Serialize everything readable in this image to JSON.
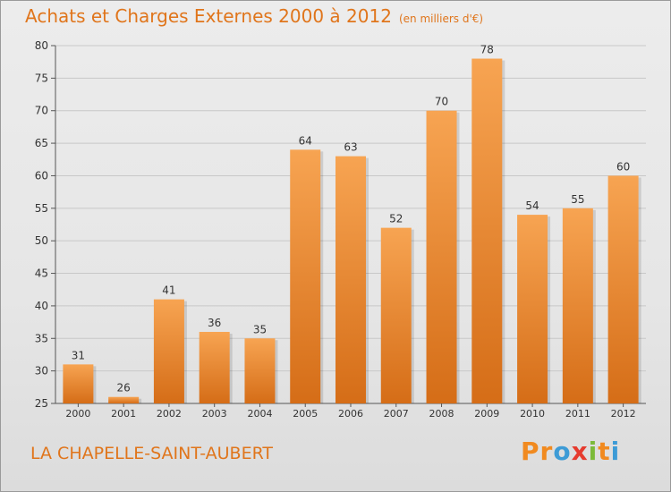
{
  "header": {
    "title": "Achats et Charges Externes 2000 à 2012",
    "unit": "(en milliers d'€)"
  },
  "footer": {
    "commune": "LA CHAPELLE-SAINT-AUBERT",
    "logo": "Proxiti"
  },
  "colors": {
    "bar_top": "#f7a452",
    "bar_bottom": "#d56d17",
    "title": "#e0751b",
    "logo": [
      "#f18a1f",
      "#f18a1f",
      "#3d9bd6",
      "#e63b2e",
      "#7cba3a",
      "#f18a1f",
      "#3d9bd6"
    ]
  },
  "chart_data": {
    "type": "bar",
    "title": "Achats et Charges Externes 2000 à 2012",
    "subtitle": "(en milliers d'€)",
    "categories": [
      "2000",
      "2001",
      "2002",
      "2003",
      "2004",
      "2005",
      "2006",
      "2007",
      "2008",
      "2009",
      "2010",
      "2011",
      "2012"
    ],
    "values": [
      31,
      26,
      41,
      36,
      35,
      64,
      63,
      52,
      70,
      78,
      54,
      55,
      60
    ],
    "ylim": [
      25,
      80
    ],
    "yticks": [
      25,
      30,
      35,
      40,
      45,
      50,
      55,
      60,
      65,
      70,
      75,
      80
    ],
    "grid": true,
    "data_labels": true
  }
}
